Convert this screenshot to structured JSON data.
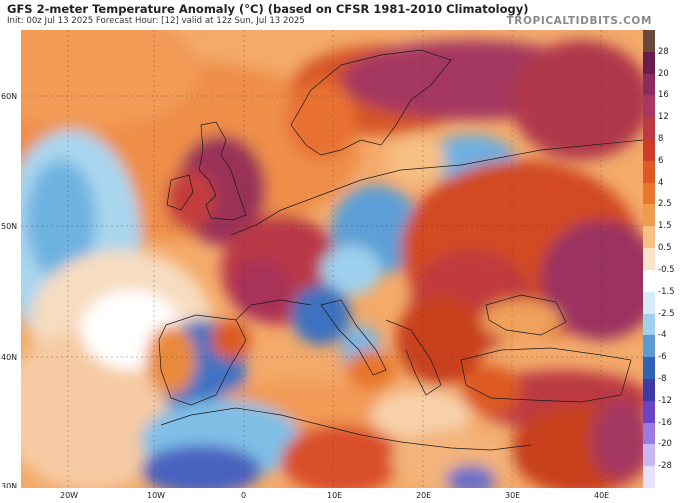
{
  "header": {
    "title": "GFS 2-meter Temperature Anomaly (°C) (based on CFSR 1981-2010 Climatology)",
    "subtitle": "Init: 00z Jul 13 2025   Forecast Hour: [12]   valid at 12z Sun, Jul 13 2025",
    "brand": "TROPICALTIDBITS.COM"
  },
  "map": {
    "region": "Europe / North Africa",
    "projection": "lat-lon",
    "lat_labels": [
      "60N",
      "50N",
      "40N",
      "30N"
    ],
    "lon_labels": [
      "20W",
      "10W",
      "0",
      "10E",
      "20E",
      "30E",
      "40E"
    ]
  },
  "colorbar": {
    "unit": "°C",
    "levels": [
      "28",
      "20",
      "16",
      "12",
      "8",
      "6",
      "4",
      "2.5",
      "1.5",
      "0.5",
      "-0.5",
      "-1.5",
      "-2.5",
      "-4",
      "-6",
      "-8",
      "-12",
      "-16",
      "-20",
      "-28"
    ],
    "colors": [
      "#6b4a3a",
      "#6a1d4a",
      "#8d2b5e",
      "#a83861",
      "#bb3a44",
      "#cc3d28",
      "#dd5a23",
      "#e9772e",
      "#f09a4d",
      "#f6bf83",
      "#f9e4c8",
      "#ffffff",
      "#d6ecf7",
      "#9fd1ec",
      "#5a9bd5",
      "#2f63b8",
      "#3b3aa8",
      "#6b45c6",
      "#9b7be0",
      "#c9b7ef",
      "#e8dff8"
    ]
  }
}
